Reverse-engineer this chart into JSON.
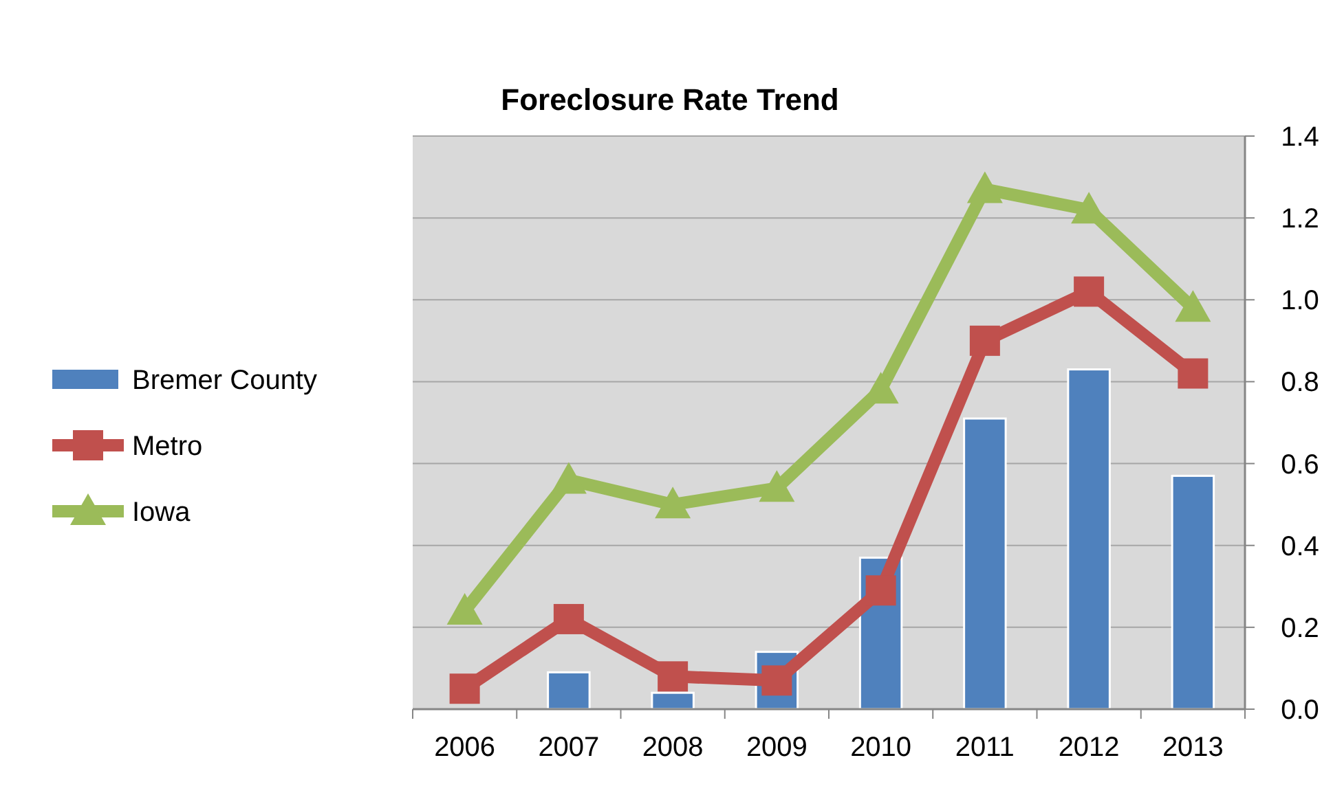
{
  "chart_data": {
    "type": "bar",
    "title": "Foreclosure Rate Trend",
    "categories": [
      "2006",
      "2007",
      "2008",
      "2009",
      "2010",
      "2011",
      "2012",
      "2013"
    ],
    "series": [
      {
        "name": "Bremer County",
        "color": "#4f81bd",
        "values": [
          null,
          0.09,
          0.04,
          0.14,
          0.37,
          0.71,
          0.83,
          0.57
        ]
      },
      {
        "name": "Metro",
        "type": "line",
        "color": "#c0504d",
        "marker": "square",
        "values": [
          0.05,
          0.22,
          0.08,
          0.07,
          0.29,
          0.9,
          1.02,
          0.82
        ]
      },
      {
        "name": "Iowa",
        "type": "line",
        "color": "#9bbb59",
        "marker": "triangle",
        "values": [
          0.24,
          0.56,
          0.5,
          0.54,
          0.78,
          1.27,
          1.22,
          0.98
        ]
      }
    ],
    "ylim": [
      0,
      1.4
    ],
    "yticks": [
      {
        "value": 0,
        "label": "0.0"
      },
      {
        "value": 0.2,
        "label": "0.2"
      },
      {
        "value": 0.4,
        "label": "0.4"
      },
      {
        "value": 0.6,
        "label": "0.6"
      },
      {
        "value": 0.8,
        "label": "0.8"
      },
      {
        "value": 1,
        "label": "1.0"
      },
      {
        "value": 1.2,
        "label": "1.2"
      },
      {
        "value": 1.4,
        "label": "1.4"
      }
    ],
    "grid": "y",
    "legend": "left"
  }
}
